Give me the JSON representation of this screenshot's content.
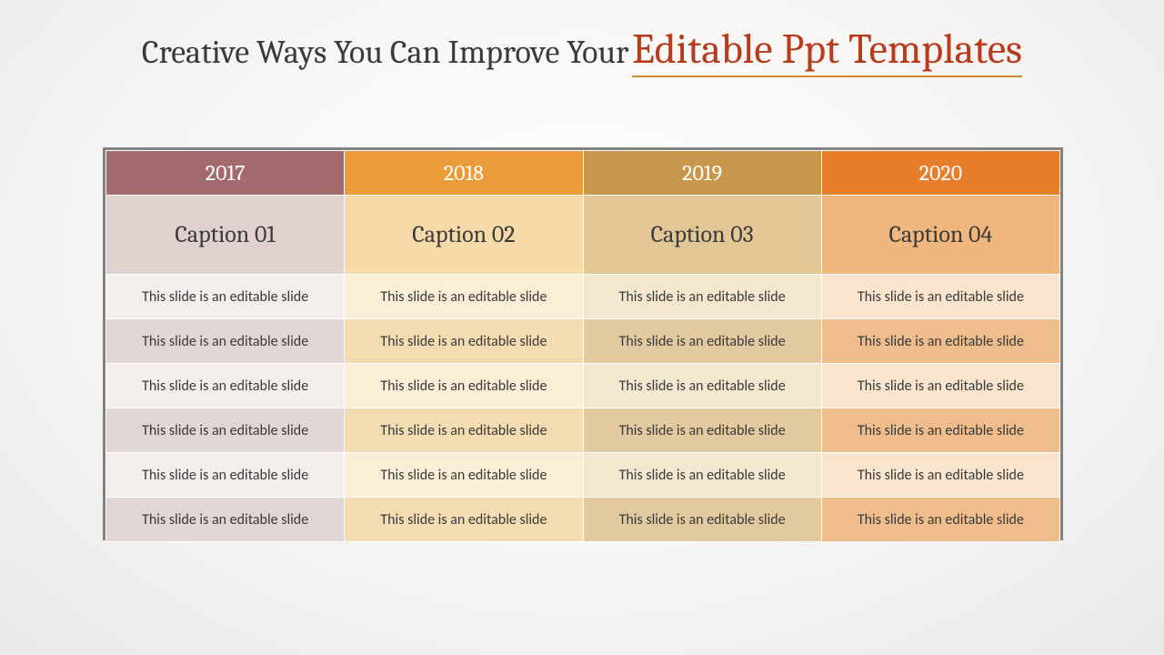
{
  "title": {
    "prefix": "Creative Ways You Can Improve Your ",
    "emphasis": "Editable Ppt Templates",
    "prefix_color": "#3a3a3a",
    "emphasis_color": "#b83b1d",
    "underline_color": "#cf8a2e",
    "prefix_fontsize": 36,
    "emphasis_fontsize": 46
  },
  "table": {
    "type": "table",
    "n_cols": 4,
    "col_width_pct": 25,
    "border_frame_color": "#828282",
    "cell_border_color": "#ffffff",
    "header_row_height": 46,
    "caption_row_height": 84,
    "body_row_height": 46,
    "header_fontsize": 24,
    "caption_fontsize": 26,
    "body_fontsize": 16,
    "columns": [
      {
        "year": "2017",
        "caption": "Caption 01",
        "header_bg": "#a26a6c",
        "caption_bg": "#e0d0ce",
        "row_odd_bg": "#f3edec",
        "row_even_bg": "#e1d6d4"
      },
      {
        "year": "2018",
        "caption": "Caption 02",
        "header_bg": "#e99c39",
        "caption_bg": "#f6d9a9",
        "row_odd_bg": "#fbeed6",
        "row_even_bg": "#f4dcb2"
      },
      {
        "year": "2019",
        "caption": "Caption 03",
        "header_bg": "#c9974c",
        "caption_bg": "#e3c696",
        "row_odd_bg": "#f3e7d0",
        "row_even_bg": "#e2c99f"
      },
      {
        "year": "2020",
        "caption": "Caption 04",
        "header_bg": "#e77e2b",
        "caption_bg": "#efb67d",
        "row_odd_bg": "#f9e4cd",
        "row_even_bg": "#efbd8c"
      }
    ],
    "body_rows": [
      [
        "This slide is an editable slide",
        "This slide is an editable slide",
        "This slide is an editable slide",
        "This slide is an editable slide"
      ],
      [
        "This slide is an editable slide",
        "This slide is an editable slide",
        "This slide is an editable slide",
        "This slide is an editable slide"
      ],
      [
        "This slide is an editable slide",
        "This slide is an editable slide",
        "This slide is an editable slide",
        "This slide is an editable slide"
      ],
      [
        "This slide is an editable slide",
        "This slide is an editable slide",
        "This slide is an editable slide",
        "This slide is an editable slide"
      ],
      [
        "This slide is an editable slide",
        "This slide is an editable slide",
        "This slide is an editable slide",
        "This slide is an editable slide"
      ],
      [
        "This slide is an editable slide",
        "This slide is an editable slide",
        "This slide is an editable slide",
        "This slide is an editable slide"
      ]
    ]
  }
}
